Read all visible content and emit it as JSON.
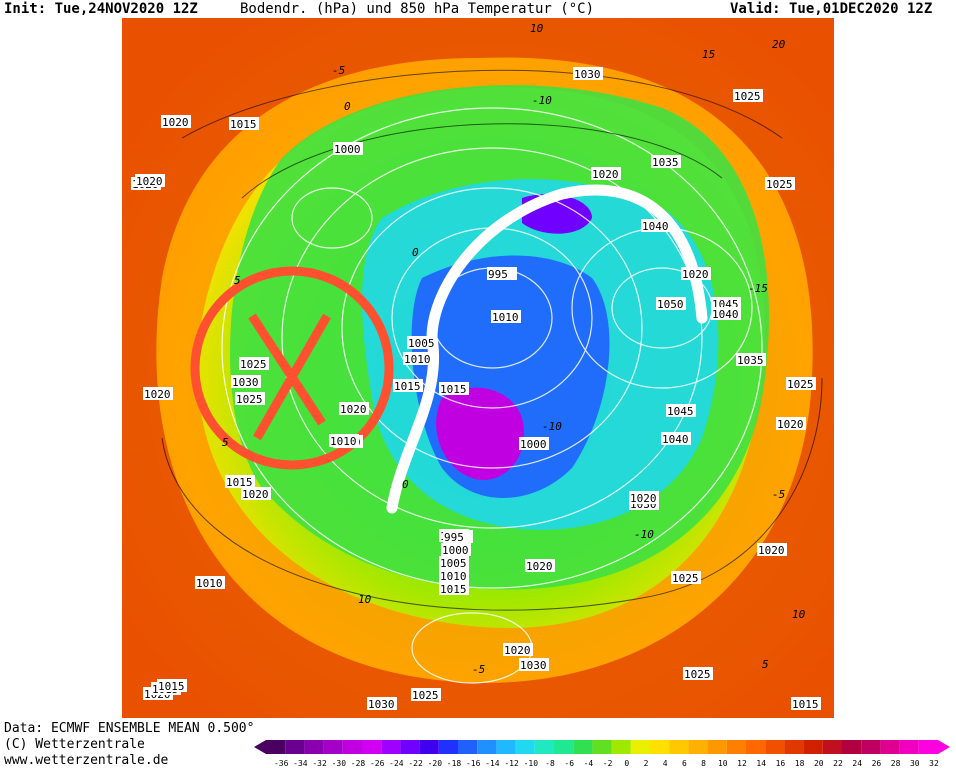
{
  "header": {
    "init": "Init: Tue,24NOV2020 12Z",
    "title": "Bodendr. (hPa) und 850 hPa Temperatur (°C)",
    "valid": "Valid: Tue,01DEC2020 12Z"
  },
  "footer": {
    "data": "Data: ECMWF ENSEMBLE MEAN 0.500°",
    "copyright": "(C) Wetterzentrale",
    "url": "www.wetterzentrale.de"
  },
  "legend": {
    "values": [
      "-36",
      "-34",
      "-32",
      "-30",
      "-28",
      "-26",
      "-24",
      "-22",
      "-20",
      "-18",
      "-16",
      "-14",
      "-12",
      "-10",
      "-8",
      "-6",
      "-4",
      "-2",
      "0",
      "2",
      "4",
      "6",
      "8",
      "10",
      "12",
      "14",
      "16",
      "18",
      "20",
      "22",
      "24",
      "26",
      "28",
      "30",
      "32"
    ],
    "colors": [
      "#4a0060",
      "#6a0090",
      "#8a00b0",
      "#a400c8",
      "#c000e0",
      "#d000f0",
      "#a000ff",
      "#7000ff",
      "#4000f0",
      "#2030ff",
      "#2060ff",
      "#2090ff",
      "#20b8ff",
      "#20d8f0",
      "#20e8c0",
      "#20e890",
      "#30e050",
      "#60e020",
      "#a0e800",
      "#e8f000",
      "#ffe000",
      "#ffc800",
      "#ffb000",
      "#ff9800",
      "#ff8000",
      "#ff6800",
      "#f05000",
      "#e03800",
      "#d02000",
      "#c01020",
      "#b00040",
      "#c00060",
      "#e00090",
      "#f000c0",
      "#ff00e0"
    ]
  },
  "map": {
    "pressure_labels": [
      "1020",
      "1020",
      "1015",
      "1020",
      "1000",
      "1030",
      "1025",
      "1035",
      "1025",
      "1020",
      "1020",
      "1040",
      "1045",
      "1040",
      "1020",
      "1035",
      "1025",
      "1045",
      "1040",
      "1050",
      "1030",
      "995",
      "1000",
      "1005",
      "1010",
      "1015",
      "1025",
      "1030",
      "1025",
      "1020",
      "1020",
      "1010",
      "1015",
      "1010",
      "1015",
      "1010",
      "1000",
      "995",
      "1000",
      "1005",
      "1010",
      "1015",
      "1020",
      "1025",
      "1020",
      "1030",
      "1020",
      "1025",
      "1020",
      "1015",
      "1015",
      "1030",
      "1025",
      "1020",
      "1020",
      "1010",
      "1015"
    ],
    "temperature_labels": [
      "10",
      "-5",
      "0",
      "5",
      "-10",
      "0",
      "5",
      "10",
      "-5",
      "-15",
      "-10",
      "0",
      "-5",
      "-10",
      "5",
      "10",
      "15",
      "20"
    ],
    "annotation_cross": "red circle with cross over Greenland",
    "annotation_arc": "white arc over Siberia"
  }
}
